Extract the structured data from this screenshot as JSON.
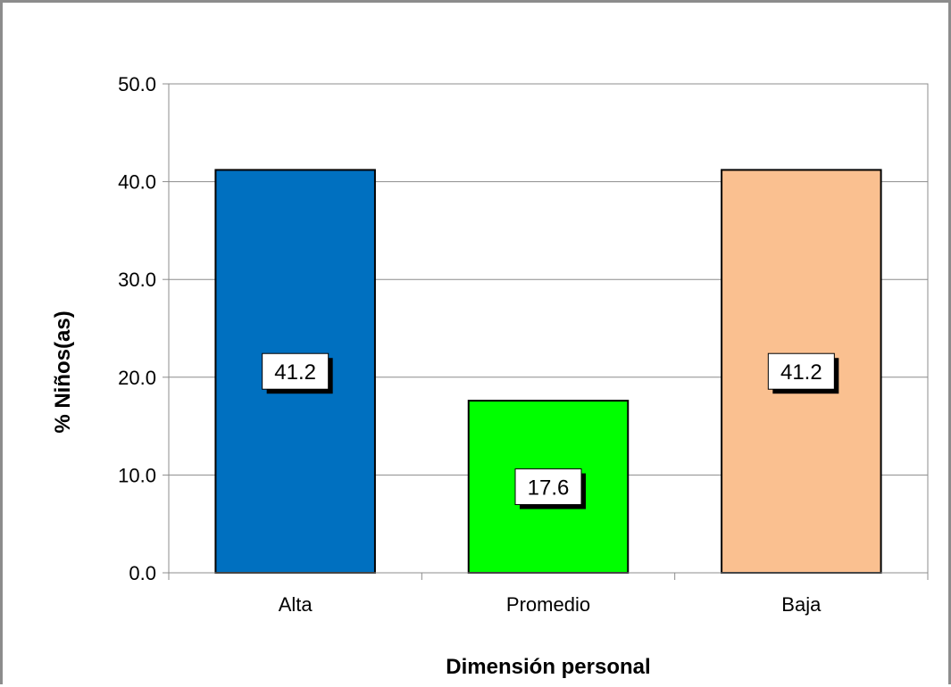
{
  "chart_data": {
    "type": "bar",
    "categories": [
      "Alta",
      "Promedio",
      "Baja"
    ],
    "values": [
      41.2,
      17.6,
      41.2
    ],
    "data_labels": [
      "41.2",
      "17.6",
      "41.2"
    ],
    "bar_colors": [
      "#0070c0",
      "#00ff00",
      "#fac090"
    ],
    "title": "",
    "xlabel": "Dimensión personal",
    "ylabel": "% Niños(as)",
    "ylim": [
      0,
      50
    ],
    "yticks": [
      0,
      10,
      20,
      30,
      40,
      50
    ],
    "ytick_labels": [
      "0.0",
      "10.0",
      "20.0",
      "30.0",
      "40.0",
      "50.0"
    ],
    "grid": true,
    "legend": "none"
  }
}
